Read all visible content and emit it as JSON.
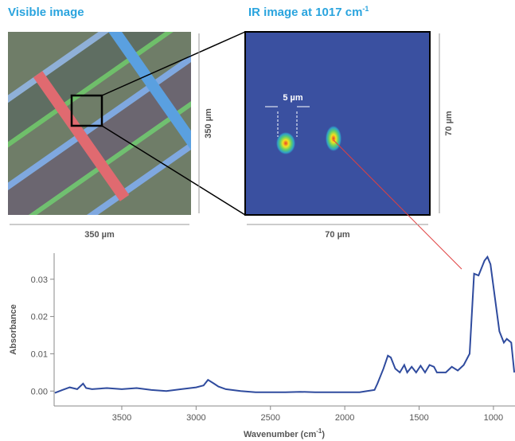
{
  "visible_panel": {
    "title": "Visible image",
    "width_label": "350 µm",
    "height_label": "350 µm"
  },
  "ir_panel": {
    "title": "IR image at 1017 cm",
    "title_superscript": "-1",
    "width_label": "70 µm",
    "height_label": "70 µm",
    "spot_label": "5 µm"
  },
  "chart_data": {
    "type": "line",
    "ylabel": "Absorbance",
    "xlabel_parts": [
      "Wavenumber (cm",
      "-1",
      ")"
    ],
    "xlim": [
      3955,
      855
    ],
    "ylim": [
      -0.004,
      0.037
    ],
    "xticks": [
      3500,
      3000,
      2500,
      2000,
      1500,
      1000
    ],
    "yticks": [
      {
        "value": 0,
        "label": "0.00"
      },
      0.01,
      0.02,
      0.03
    ],
    "series": [
      {
        "color": "#2f4b9e",
        "x": [
          3950,
          3900,
          3850,
          3800,
          3760,
          3740,
          3700,
          3600,
          3500,
          3400,
          3300,
          3200,
          3100,
          3000,
          2950,
          2920,
          2880,
          2850,
          2800,
          2700,
          2600,
          2500,
          2400,
          2300,
          2200,
          2100,
          2000,
          1900,
          1850,
          1800,
          1780,
          1740,
          1710,
          1690,
          1660,
          1630,
          1600,
          1580,
          1550,
          1520,
          1490,
          1460,
          1430,
          1400,
          1380,
          1320,
          1280,
          1240,
          1200,
          1160,
          1130,
          1100,
          1060,
          1040,
          1020,
          990,
          960,
          930,
          910,
          880,
          860
        ],
        "values": [
          -0.0005,
          0.0003,
          0.001,
          0.0005,
          0.002,
          0.0008,
          0.0005,
          0.0008,
          0.0005,
          0.0008,
          0.0003,
          0.0,
          0.0005,
          0.001,
          0.0015,
          0.003,
          0.002,
          0.0012,
          0.0005,
          0.0,
          -0.0003,
          -0.0003,
          -0.0003,
          -0.0002,
          -0.0003,
          -0.0003,
          -0.0003,
          -0.0003,
          0.0,
          0.0003,
          0.002,
          0.006,
          0.0095,
          0.009,
          0.006,
          0.005,
          0.007,
          0.005,
          0.0065,
          0.005,
          0.0068,
          0.005,
          0.007,
          0.0065,
          0.005,
          0.005,
          0.0065,
          0.0055,
          0.007,
          0.01,
          0.0315,
          0.031,
          0.035,
          0.036,
          0.034,
          0.025,
          0.016,
          0.013,
          0.014,
          0.013,
          0.005
        ]
      }
    ]
  }
}
